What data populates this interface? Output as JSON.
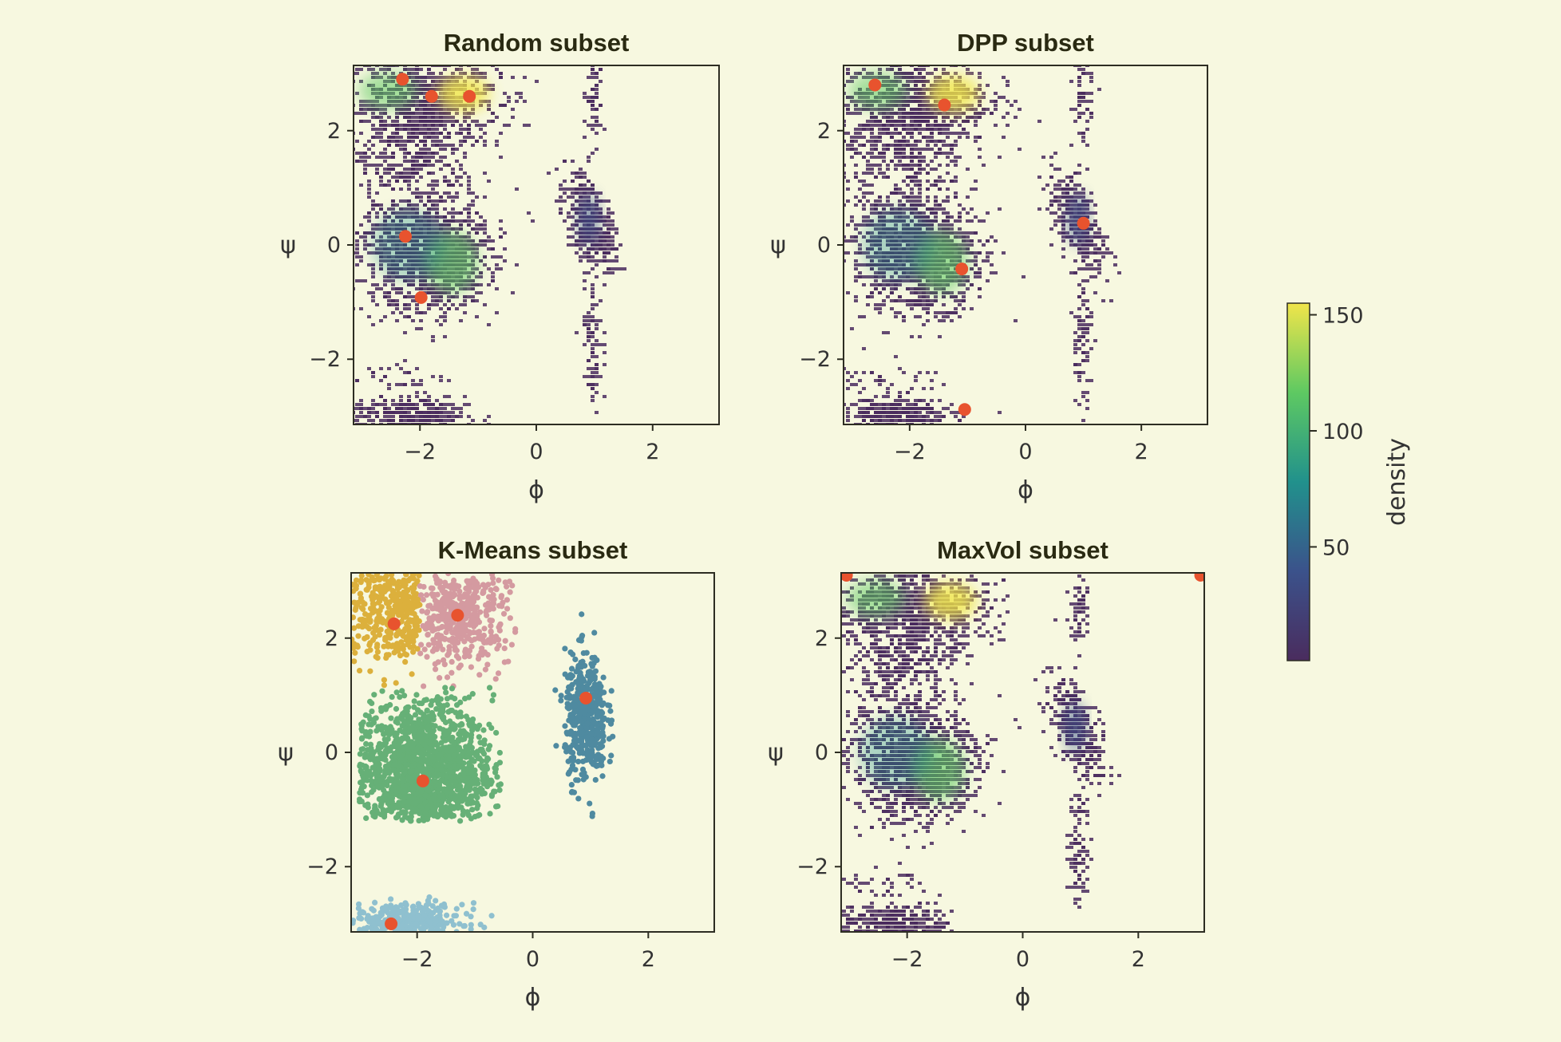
{
  "figure": {
    "background": "#f7f8e0",
    "density_colormap": [
      "#4a2c5e",
      "#3b528b",
      "#21918c",
      "#5ec962",
      "#f0e54a"
    ],
    "marker_color": "#e8532e"
  },
  "chart_data": [
    {
      "type": "heatmap",
      "title": "Random subset",
      "xlabel": "ϕ",
      "ylabel": "ψ",
      "xlim": [
        -3.14159,
        3.14159
      ],
      "ylim": [
        -3.14159,
        3.14159
      ],
      "xticks": [
        "−2",
        "0",
        "2"
      ],
      "yticks": [
        "−2",
        "0",
        "2"
      ],
      "selected_points": [
        [
          -2.3,
          2.9
        ],
        [
          -1.8,
          2.6
        ],
        [
          -1.15,
          2.6
        ],
        [
          -2.25,
          0.15
        ],
        [
          -1.98,
          -0.92
        ]
      ]
    },
    {
      "type": "heatmap",
      "title": "DPP subset",
      "xlabel": "ϕ",
      "ylabel": "ψ",
      "xlim": [
        -3.14159,
        3.14159
      ],
      "ylim": [
        -3.14159,
        3.14159
      ],
      "xticks": [
        "−2",
        "0",
        "2"
      ],
      "yticks": [
        "−2",
        "0",
        "2"
      ],
      "selected_points": [
        [
          -2.6,
          2.8
        ],
        [
          -1.4,
          2.45
        ],
        [
          1.0,
          0.38
        ],
        [
          -1.1,
          -0.42
        ],
        [
          -1.05,
          -2.88
        ]
      ]
    },
    {
      "type": "scatter",
      "title": "K-Means subset",
      "xlabel": "ϕ",
      "ylabel": "ψ",
      "xlim": [
        -3.14159,
        3.14159
      ],
      "ylim": [
        -3.14159,
        3.14159
      ],
      "xticks": [
        "−2",
        "0",
        "2"
      ],
      "yticks": [
        "−2",
        "0",
        "2"
      ],
      "clusters": [
        {
          "color": "#dcb03c",
          "center": [
            -2.4,
            2.25
          ]
        },
        {
          "color": "#d49aa0",
          "center": [
            -1.3,
            2.4
          ]
        },
        {
          "color": "#66b077",
          "center": [
            -1.9,
            -0.5
          ]
        },
        {
          "color": "#4f8aa0",
          "center": [
            0.92,
            0.95
          ]
        },
        {
          "color": "#8fc0cf",
          "center": [
            -2.45,
            -3.0
          ]
        }
      ],
      "selected_points": [
        [
          -2.4,
          2.25
        ],
        [
          -1.3,
          2.4
        ],
        [
          0.92,
          0.95
        ],
        [
          -1.9,
          -0.5
        ],
        [
          -2.45,
          -3.0
        ]
      ]
    },
    {
      "type": "heatmap",
      "title": "MaxVol subset",
      "xlabel": "ϕ",
      "ylabel": "ψ",
      "xlim": [
        -3.14159,
        3.14159
      ],
      "ylim": [
        -3.14159,
        3.14159
      ],
      "xticks": [
        "−2",
        "0",
        "2"
      ],
      "yticks": [
        "−2",
        "0",
        "2"
      ],
      "selected_points": [
        [
          -3.05,
          3.1
        ],
        [
          3.08,
          3.1
        ]
      ]
    }
  ],
  "colorbar": {
    "label": "density",
    "ticks": [
      "50",
      "100",
      "150"
    ],
    "tick_values": [
      50,
      100,
      150
    ],
    "range": [
      1,
      155
    ]
  }
}
